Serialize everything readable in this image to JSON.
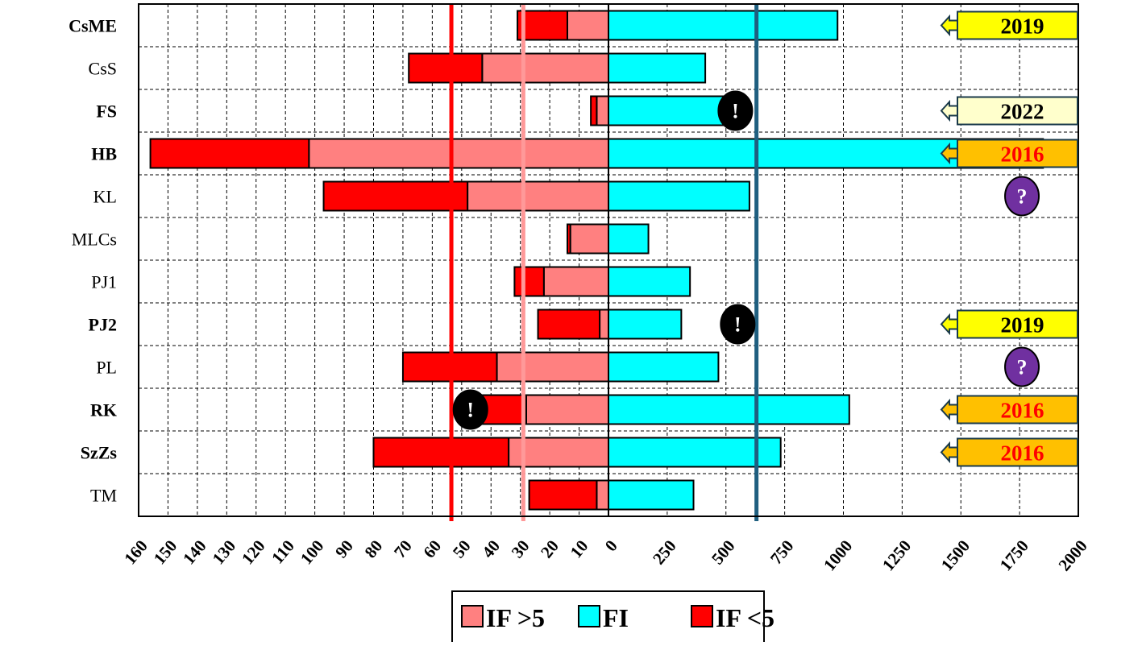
{
  "chart_data": {
    "type": "bar",
    "orientation": "horizontal-diverging",
    "title": "",
    "categories": [
      "CsME",
      "CsS",
      "FS",
      "HB",
      "KL",
      "MLCs",
      "PJ1",
      "PJ2",
      "PL",
      "RK",
      "SzZs",
      "TM"
    ],
    "bold_categories": [
      "CsME",
      "FS",
      "HB",
      "PJ2",
      "RK",
      "SzZs"
    ],
    "left_axis": {
      "range": [
        0,
        160
      ],
      "reversed": true,
      "ticks": [
        "160",
        "150",
        "140",
        "130",
        "120",
        "110",
        "100",
        "90",
        "80",
        "70",
        "60",
        "50",
        "40",
        "30",
        "20",
        "10",
        "0"
      ]
    },
    "right_axis": {
      "range": [
        0,
        2000
      ],
      "ticks": [
        "0",
        "250",
        "500",
        "750",
        "1000",
        "1250",
        "1500",
        "1750",
        "2000"
      ]
    },
    "series": [
      {
        "name": "IF >5",
        "side": "left",
        "color": "#ff8080",
        "values": [
          14,
          43,
          4,
          102,
          48,
          13,
          22,
          3,
          38,
          28,
          34,
          4
        ]
      },
      {
        "name": "IF <5",
        "side": "left",
        "stacked_on": "IF >5",
        "color": "#ff0000",
        "values": [
          17,
          25,
          2,
          54,
          49,
          1,
          10,
          21,
          32,
          15,
          46,
          23
        ]
      },
      {
        "name": "FI",
        "side": "right",
        "color": "#00ffff",
        "values": [
          975,
          412,
          490,
          1850,
          600,
          170,
          347,
          310,
          468,
          1025,
          733,
          362
        ]
      }
    ],
    "reference_lines": [
      {
        "side": "left",
        "value": 53.5,
        "color": "#ff0000"
      },
      {
        "side": "left",
        "value": 29,
        "color": "#ff9999"
      },
      {
        "side": "right",
        "value": 630,
        "color": "#1f5f80"
      }
    ],
    "year_tags": [
      {
        "category": "CsME",
        "label": "2019",
        "fill": "#ffff00",
        "text_color": "#000000"
      },
      {
        "category": "FS",
        "label": "2022",
        "fill": "#ffffcc",
        "text_color": "#000000"
      },
      {
        "category": "HB",
        "label": "2016",
        "fill": "#ffc000",
        "text_color": "#ff0000"
      },
      {
        "category": "PJ2",
        "label": "2019",
        "fill": "#ffff00",
        "text_color": "#000000"
      },
      {
        "category": "RK",
        "label": "2016",
        "fill": "#ffc000",
        "text_color": "#ff0000"
      },
      {
        "category": "SzZs",
        "label": "2016",
        "fill": "#ffc000",
        "text_color": "#ff0000"
      }
    ],
    "markers": [
      {
        "category": "FS",
        "symbol": "!",
        "side": "right",
        "value": 540,
        "fill": "#000000"
      },
      {
        "category": "PJ2",
        "symbol": "!",
        "side": "right",
        "value": 550,
        "fill": "#000000"
      },
      {
        "category": "RK",
        "symbol": "!",
        "side": "left",
        "value": 47,
        "fill": "#000000"
      },
      {
        "category": "KL",
        "symbol": "?",
        "side": "right",
        "value": 1760,
        "fill": "#7030a0"
      },
      {
        "category": "PL",
        "symbol": "?",
        "side": "right",
        "value": 1760,
        "fill": "#7030a0"
      }
    ],
    "legend": {
      "position": "bottom",
      "entries": [
        "IF >5",
        "FI",
        "IF <5"
      ]
    },
    "grid": true
  }
}
